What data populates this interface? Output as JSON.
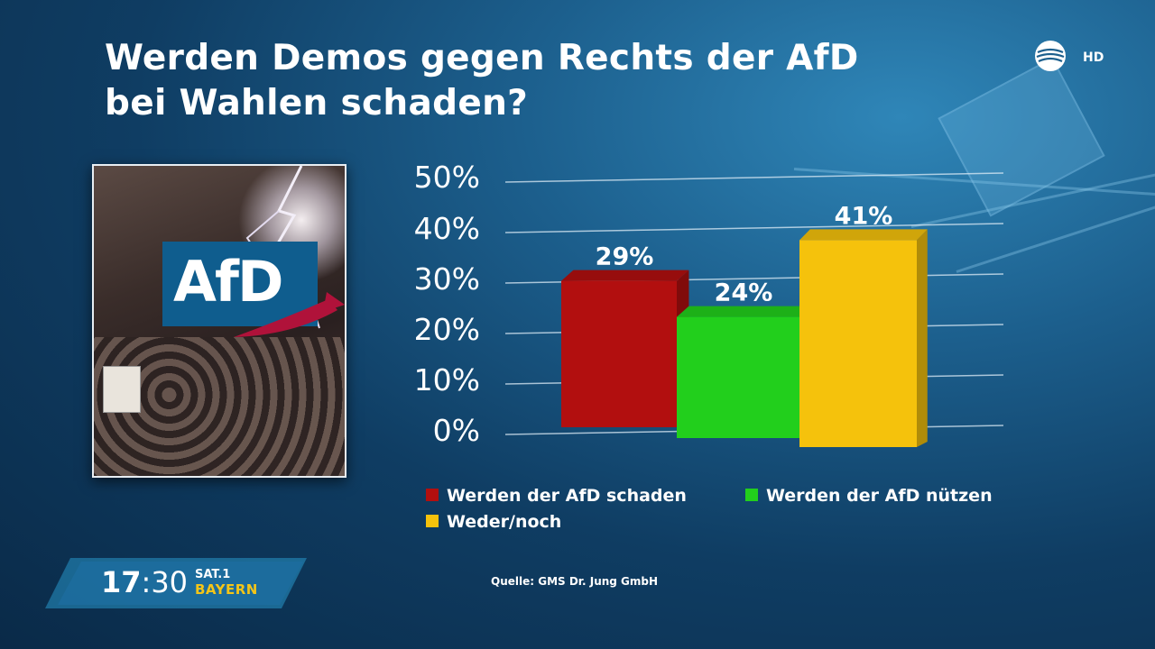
{
  "title_line1": "Werden Demos gegen Rechts der AfD",
  "title_line2": "bei Wahlen schaden?",
  "channel": {
    "hd_label": "HD",
    "time_hour": "17",
    "time_min": ":30",
    "name": "SAT.1",
    "region": "BAYERN"
  },
  "photo": {
    "logo_text": "AfD"
  },
  "source": "Quelle: GMS Dr. Jung GmbH",
  "chart_data": {
    "type": "bar",
    "title": "Werden Demos gegen Rechts der AfD bei Wahlen schaden?",
    "categories": [
      "Werden der AfD schaden",
      "Werden der AfD nützen",
      "Weder/noch"
    ],
    "values": [
      29,
      24,
      41
    ],
    "value_labels": [
      "29%",
      "24%",
      "41%"
    ],
    "colors": [
      "#b20f0f",
      "#22cf1c",
      "#f5c20c"
    ],
    "yticks": [
      "0%",
      "10%",
      "20%",
      "30%",
      "40%",
      "50%"
    ],
    "ylim": [
      0,
      50
    ],
    "grid": true,
    "legend_position": "bottom",
    "legend": [
      "Werden der AfD schaden",
      "Werden der AfD nützen",
      "Weder/noch"
    ]
  }
}
